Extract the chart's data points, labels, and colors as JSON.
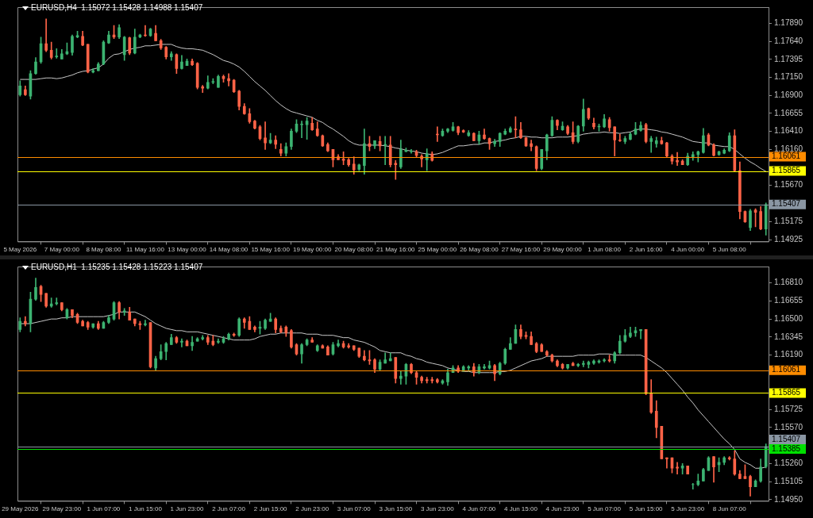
{
  "chart_data": [
    {
      "type": "candlestick",
      "title": "EURUSD,H4  1.15072 1.15428 1.14988 1.15407",
      "legend": false,
      "grid": false,
      "categories": [
        "5 May 2026",
        null,
        null,
        null,
        null,
        null,
        null,
        null,
        "7 May 00:00",
        null,
        null,
        null,
        null,
        null,
        null,
        null,
        "8 May 08:00",
        null,
        null,
        null,
        null,
        null,
        null,
        null,
        "11 May 16:00",
        null,
        null,
        null,
        null,
        null,
        null,
        null,
        "13 May 00:00",
        null,
        null,
        null,
        null,
        null,
        null,
        null,
        "14 May 08:00",
        null,
        null,
        null,
        null,
        null,
        null,
        null,
        "15 May 16:00",
        null,
        null,
        null,
        null,
        null,
        null,
        null,
        "19 May 00:00",
        null,
        null,
        null,
        null,
        null,
        null,
        null,
        "20 May 08:00",
        null,
        null,
        null,
        null,
        null,
        null,
        null,
        "21 May 16:00",
        null,
        null,
        null,
        null,
        null,
        null,
        null,
        "25 May 00:00",
        null,
        null,
        null,
        null,
        null,
        null,
        null,
        "26 May 08:00",
        null,
        null,
        null,
        null,
        null,
        null,
        null,
        "27 May 16:00",
        null,
        null,
        null,
        null,
        null,
        null,
        null,
        "29 May 00:00",
        null,
        null,
        null,
        null,
        null,
        null,
        null,
        "1 Jun 08:00",
        null,
        null,
        null,
        null,
        null,
        null,
        null,
        "2 Jun 16:00",
        null,
        null,
        null,
        null,
        null,
        null,
        null,
        "4 Jun 00:00",
        null,
        null,
        null,
        null,
        null,
        null,
        null,
        "5 Jun 08:00",
        null,
        null,
        null,
        null,
        null,
        null,
        null
      ],
      "ohlc": [
        [
          1.1691,
          1.171,
          1.1689,
          1.1703
        ],
        [
          1.1698,
          1.1703,
          1.169,
          1.1691
        ],
        [
          1.1689,
          1.1724,
          1.1685,
          1.172
        ],
        [
          1.172,
          1.1742,
          1.1719,
          1.1736
        ],
        [
          1.1736,
          1.177,
          1.1734,
          1.1761
        ],
        [
          1.1761,
          1.1795,
          1.175,
          1.1752
        ],
        [
          1.1752,
          1.1763,
          1.174,
          1.1742
        ],
        [
          1.1743,
          1.1754,
          1.1741,
          1.1744
        ],
        [
          1.174,
          1.1753,
          1.174,
          1.1747
        ],
        [
          1.1747,
          1.1762,
          1.1746,
          1.175
        ],
        [
          1.1749,
          1.1773,
          1.1745,
          1.1771
        ],
        [
          1.177,
          1.1778,
          1.1769,
          1.1772
        ],
        [
          1.1771,
          1.1778,
          1.1758,
          1.1759
        ],
        [
          1.176,
          1.176,
          1.1721,
          1.1722
        ],
        [
          1.1722,
          1.1727,
          1.1721,
          1.1724
        ],
        [
          1.1724,
          1.1735,
          1.1724,
          1.1733
        ],
        [
          1.1733,
          1.1765,
          1.1732,
          1.1763
        ],
        [
          1.1762,
          1.1778,
          1.1761,
          1.1773
        ],
        [
          1.1773,
          1.1786,
          1.1768,
          1.177
        ],
        [
          1.177,
          1.1787,
          1.1768,
          1.1783
        ],
        [
          1.1746,
          1.1771,
          1.1738,
          1.177
        ],
        [
          1.1769,
          1.177,
          1.1746,
          1.1748
        ],
        [
          1.1748,
          1.1781,
          1.1747,
          1.177
        ],
        [
          1.177,
          1.1774,
          1.1769,
          1.1773
        ],
        [
          1.1773,
          1.1786,
          1.1771,
          1.1772
        ],
        [
          1.1772,
          1.1782,
          1.1771,
          1.1781
        ],
        [
          1.1775,
          1.1786,
          1.1765,
          1.1765
        ],
        [
          1.1765,
          1.1767,
          1.1753,
          1.1755
        ],
        [
          1.1756,
          1.1757,
          1.174,
          1.1743
        ],
        [
          1.1743,
          1.175,
          1.1738,
          1.1747
        ],
        [
          1.1746,
          1.1747,
          1.172,
          1.1727
        ],
        [
          1.1727,
          1.1745,
          1.1726,
          1.1736
        ],
        [
          1.1731,
          1.174,
          1.1731,
          1.1737
        ],
        [
          1.1737,
          1.174,
          1.1731,
          1.1732
        ],
        [
          1.1734,
          1.1735,
          1.1699,
          1.1701
        ],
        [
          1.1702,
          1.1704,
          1.1694,
          1.17
        ],
        [
          1.17,
          1.1717,
          1.1699,
          1.1708
        ],
        [
          1.1708,
          1.1713,
          1.1706,
          1.1709
        ],
        [
          1.1701,
          1.1718,
          1.1701,
          1.1716
        ],
        [
          1.1716,
          1.1718,
          1.1708,
          1.1713
        ],
        [
          1.1713,
          1.172,
          1.1703,
          1.171
        ],
        [
          1.1711,
          1.1712,
          1.1694,
          1.1695
        ],
        [
          1.1696,
          1.1697,
          1.167,
          1.1675
        ],
        [
          1.1675,
          1.1679,
          1.1664,
          1.1665
        ],
        [
          1.1665,
          1.1672,
          1.1652,
          1.1654
        ],
        [
          1.1655,
          1.1656,
          1.1644,
          1.1645
        ],
        [
          1.1647,
          1.1649,
          1.1629,
          1.1631
        ],
        [
          1.1632,
          1.1654,
          1.1616,
          1.1625
        ],
        [
          1.1625,
          1.1638,
          1.1624,
          1.1629
        ],
        [
          1.1629,
          1.1635,
          1.1617,
          1.1623
        ],
        [
          1.1616,
          1.1624,
          1.1607,
          1.1611
        ],
        [
          1.1611,
          1.1625,
          1.1607,
          1.162
        ],
        [
          1.162,
          1.1644,
          1.1616,
          1.1641
        ],
        [
          1.1641,
          1.1657,
          1.1639,
          1.1651
        ],
        [
          1.165,
          1.1655,
          1.1632,
          1.1651
        ],
        [
          1.165,
          1.166,
          1.163,
          1.1655
        ],
        [
          1.1652,
          1.166,
          1.1642,
          1.1643
        ],
        [
          1.1644,
          1.1654,
          1.1634,
          1.1635
        ],
        [
          1.1635,
          1.1636,
          1.162,
          1.1621
        ],
        [
          1.1623,
          1.1625,
          1.1613,
          1.1614
        ],
        [
          1.1616,
          1.1616,
          1.1592,
          1.1602
        ],
        [
          1.1606,
          1.1609,
          1.1602,
          1.1602
        ],
        [
          1.1603,
          1.1613,
          1.1595,
          1.1601
        ],
        [
          1.1602,
          1.1604,
          1.1593,
          1.1595
        ],
        [
          1.1596,
          1.1606,
          1.1582,
          1.1588
        ],
        [
          1.1589,
          1.1596,
          1.1587,
          1.1595
        ],
        [
          1.1594,
          1.1644,
          1.1582,
          1.1624
        ],
        [
          1.1624,
          1.1634,
          1.1614,
          1.162
        ],
        [
          1.1621,
          1.1628,
          1.1617,
          1.1628
        ],
        [
          1.1627,
          1.1634,
          1.1614,
          1.1621
        ],
        [
          1.1622,
          1.1634,
          1.1595,
          1.1623
        ],
        [
          1.1622,
          1.1634,
          1.1592,
          1.1595
        ],
        [
          1.1597,
          1.1601,
          1.1575,
          1.1595
        ],
        [
          1.1592,
          1.1629,
          1.159,
          1.1616
        ],
        [
          1.1613,
          1.1618,
          1.1613,
          1.1615
        ],
        [
          1.1613,
          1.1616,
          1.1611,
          1.1614
        ],
        [
          1.1613,
          1.1615,
          1.1606,
          1.1608
        ],
        [
          1.1607,
          1.1609,
          1.1592,
          1.1603
        ],
        [
          1.1602,
          1.1617,
          1.1587,
          1.161
        ],
        [
          1.161,
          1.1613,
          1.16,
          1.1601
        ],
        [
          1.1637,
          1.1647,
          1.1627,
          1.1636
        ],
        [
          1.1635,
          1.1644,
          1.1634,
          1.1641
        ],
        [
          1.1641,
          1.1645,
          1.1639,
          1.1644
        ],
        [
          1.1642,
          1.1653,
          1.1641,
          1.1647
        ],
        [
          1.1647,
          1.1648,
          1.1636,
          1.1639
        ],
        [
          1.1642,
          1.1643,
          1.1639,
          1.164
        ],
        [
          1.1635,
          1.1642,
          1.1634,
          1.1639
        ],
        [
          1.1638,
          1.1639,
          1.1628,
          1.1628
        ],
        [
          1.1628,
          1.1641,
          1.1623,
          1.1636
        ],
        [
          1.1636,
          1.1644,
          1.163,
          1.1631
        ],
        [
          1.1631,
          1.1632,
          1.1616,
          1.1624
        ],
        [
          1.1624,
          1.163,
          1.162,
          1.1627
        ],
        [
          1.1627,
          1.1639,
          1.162,
          1.1638
        ],
        [
          1.1637,
          1.1644,
          1.1636,
          1.1641
        ],
        [
          1.164,
          1.1647,
          1.1639,
          1.1645
        ],
        [
          1.1644,
          1.1661,
          1.1632,
          1.1643
        ],
        [
          1.1643,
          1.1653,
          1.1631,
          1.1632
        ],
        [
          1.1632,
          1.1633,
          1.162,
          1.1621
        ],
        [
          1.1624,
          1.1629,
          1.1614,
          1.162
        ],
        [
          1.162,
          1.1621,
          1.1587,
          1.159
        ],
        [
          1.159,
          1.1616,
          1.1588,
          1.1616
        ],
        [
          1.1614,
          1.1637,
          1.1602,
          1.1636
        ],
        [
          1.1635,
          1.1661,
          1.1634,
          1.1656
        ],
        [
          1.1656,
          1.1657,
          1.1643,
          1.1649
        ],
        [
          1.1643,
          1.1654,
          1.1642,
          1.1648
        ],
        [
          1.1647,
          1.1649,
          1.1636,
          1.1638
        ],
        [
          1.1639,
          1.1654,
          1.1624,
          1.1627
        ],
        [
          1.1627,
          1.1649,
          1.1625,
          1.1648
        ],
        [
          1.1648,
          1.1685,
          1.1641,
          1.1671
        ],
        [
          1.1672,
          1.1673,
          1.1657,
          1.1659
        ],
        [
          1.1652,
          1.1659,
          1.1644,
          1.1647
        ],
        [
          1.1647,
          1.1651,
          1.1641,
          1.1648
        ],
        [
          1.1647,
          1.1664,
          1.1646,
          1.1658
        ],
        [
          1.1657,
          1.166,
          1.1641,
          1.1646
        ],
        [
          1.1647,
          1.1647,
          1.1607,
          1.1629
        ],
        [
          1.1629,
          1.1637,
          1.1627,
          1.1628
        ],
        [
          1.1627,
          1.1634,
          1.1624,
          1.1631
        ],
        [
          1.163,
          1.1639,
          1.1629,
          1.1637
        ],
        [
          1.1637,
          1.1653,
          1.1636,
          1.1644
        ],
        [
          1.1642,
          1.1654,
          1.1641,
          1.1649
        ],
        [
          1.165,
          1.1652,
          1.1625,
          1.1627
        ],
        [
          1.1627,
          1.1634,
          1.1612,
          1.1631
        ],
        [
          1.1624,
          1.1633,
          1.1619,
          1.1628
        ],
        [
          1.1628,
          1.1633,
          1.1623,
          1.1624
        ],
        [
          1.1625,
          1.1626,
          1.1606,
          1.1607
        ],
        [
          1.1607,
          1.1609,
          1.1596,
          1.16
        ],
        [
          1.1601,
          1.1612,
          1.1594,
          1.1599
        ],
        [
          1.16,
          1.1602,
          1.1595,
          1.1595
        ],
        [
          1.1595,
          1.1611,
          1.1594,
          1.1607
        ],
        [
          1.1606,
          1.1613,
          1.1601,
          1.1609
        ],
        [
          1.1609,
          1.1614,
          1.1599,
          1.1613
        ],
        [
          1.1612,
          1.1645,
          1.1611,
          1.1635
        ],
        [
          1.1636,
          1.1638,
          1.1621,
          1.1622
        ],
        [
          1.1622,
          1.1624,
          1.1607,
          1.1608
        ],
        [
          1.1609,
          1.1614,
          1.1608,
          1.1613
        ],
        [
          1.1611,
          1.1617,
          1.161,
          1.1615
        ],
        [
          1.1614,
          1.1639,
          1.1613,
          1.1635
        ],
        [
          1.1635,
          1.1643,
          1.1586,
          1.1587
        ],
        [
          1.1587,
          1.1599,
          1.1521,
          1.1531
        ],
        [
          1.1531,
          1.1532,
          1.1516,
          1.1517
        ],
        [
          1.1509,
          1.1534,
          1.1505,
          1.1532
        ],
        [
          1.1533,
          1.1535,
          1.151,
          1.153
        ],
        [
          1.1531,
          1.1538,
          1.1506,
          1.1507
        ],
        [
          1.15072,
          1.15428,
          1.14988,
          1.15407
        ]
      ],
      "series": [
        {
          "type": "line",
          "color": "#c8c8c8",
          "values": [
            1.1712,
            1.1712,
            1.1712,
            1.1712,
            1.1713,
            1.1714,
            1.1714,
            1.1713,
            1.1714,
            1.1716,
            1.1718,
            1.1721,
            1.1723,
            1.1724,
            1.1726,
            1.1728,
            1.1733,
            1.1741,
            1.1746,
            1.1747,
            1.175,
            1.1753,
            1.1755,
            1.1756,
            1.1758,
            1.1758,
            1.1759,
            1.176,
            1.176,
            1.176,
            1.1757,
            1.1755,
            1.1754,
            1.1754,
            1.1753,
            1.1752,
            1.1749,
            1.1746,
            1.1742,
            1.1738,
            1.1736,
            1.1733,
            1.1729,
            1.1723,
            1.1716,
            1.1709,
            1.1703,
            1.1697,
            1.169,
            1.1683,
            1.1677,
            1.1672,
            1.1668,
            1.1666,
            1.1664,
            1.1662,
            1.166,
            1.1656,
            1.1653,
            1.1648,
            1.1644,
            1.1639,
            1.1634,
            1.1628,
            1.1624,
            1.1622,
            1.1622,
            1.1622,
            1.1622,
            1.1622,
            1.1621,
            1.162,
            1.1618,
            1.1617,
            1.1615,
            1.1614,
            1.1613,
            1.1611,
            1.161,
            1.1609,
            1.161,
            1.1612,
            1.1615,
            1.1618,
            1.1621,
            1.1621,
            1.1622,
            1.1623,
            1.1623,
            1.1625,
            1.1625,
            1.1627,
            1.1628,
            1.1629,
            1.1631,
            1.1632,
            1.1634,
            1.1634,
            1.1633,
            1.1633,
            1.1632,
            1.1632,
            1.1632,
            1.1633,
            1.1633,
            1.1633,
            1.1634,
            1.1635,
            1.1637,
            1.1638,
            1.1639,
            1.1639,
            1.164,
            1.1639,
            1.1639,
            1.1638,
            1.1639,
            1.164,
            1.1643,
            1.1644,
            1.1644,
            1.1643,
            1.1642,
            1.164,
            1.1639,
            1.1637,
            1.1635,
            1.1633,
            1.163,
            1.1627,
            1.1626,
            1.1625,
            1.1625,
            1.1622,
            1.1621,
            1.162,
            1.162,
            1.1616,
            1.161,
            1.1604,
            1.1599,
            1.1595,
            1.159,
            1.1586
          ]
        }
      ],
      "ylim": [
        1.149,
        1.1811
      ],
      "yticks": [
        {
          "value": 1.1789,
          "label": "1.17890"
        },
        {
          "value": 1.1764,
          "label": "1.17640"
        },
        {
          "value": 1.17395,
          "label": "1.17395"
        },
        {
          "value": 1.1715,
          "label": "1.17150"
        },
        {
          "value": 1.169,
          "label": "1.16900"
        },
        {
          "value": 1.16655,
          "label": "1.16655"
        },
        {
          "value": 1.1641,
          "label": "1.16410"
        },
        {
          "value": 1.1616,
          "label": "1.16160"
        },
        {
          "value": 1.1567,
          "label": "1.15670"
        },
        {
          "value": 1.15175,
          "label": "1.15175"
        },
        {
          "value": 1.14925,
          "label": "1.14925"
        }
      ],
      "ref_lines": [
        {
          "axis": "y",
          "value": 1.16061,
          "label": "1.16061",
          "color": "#ff8c00"
        },
        {
          "axis": "y",
          "value": 1.15865,
          "label": "1.15865",
          "color": "#ffff00"
        },
        {
          "axis": "y",
          "value": 1.15407,
          "label": "1.15407",
          "color": "#8a96a3"
        }
      ]
    },
    {
      "type": "candlestick",
      "title": "EURUSD,H1  1.15235 1.15428 1.15223 1.15407",
      "legend": false,
      "grid": false,
      "categories": [
        "29 May 2026",
        null,
        null,
        null,
        null,
        null,
        null,
        null,
        "29 May 23:00",
        null,
        null,
        null,
        null,
        null,
        null,
        null,
        "1 Jun 07:00",
        null,
        null,
        null,
        null,
        null,
        null,
        null,
        "1 Jun 15:00",
        null,
        null,
        null,
        null,
        null,
        null,
        null,
        "1 Jun 23:00",
        null,
        null,
        null,
        null,
        null,
        null,
        null,
        "2 Jun 07:00",
        null,
        null,
        null,
        null,
        null,
        null,
        null,
        "2 Jun 15:00",
        null,
        null,
        null,
        null,
        null,
        null,
        null,
        "2 Jun 23:00",
        null,
        null,
        null,
        null,
        null,
        null,
        null,
        "3 Jun 07:00",
        null,
        null,
        null,
        null,
        null,
        null,
        null,
        "3 Jun 15:00",
        null,
        null,
        null,
        null,
        null,
        null,
        null,
        "3 Jun 23:00",
        null,
        null,
        null,
        null,
        null,
        null,
        null,
        "4 Jun 07:00",
        null,
        null,
        null,
        null,
        null,
        null,
        null,
        "4 Jun 15:00",
        null,
        null,
        null,
        null,
        null,
        null,
        null,
        "4 Jun 23:00",
        null,
        null,
        null,
        null,
        null,
        null,
        null,
        "5 Jun 07:00",
        null,
        null,
        null,
        null,
        null,
        null,
        null,
        "5 Jun 15:00",
        null,
        null,
        null,
        null,
        null,
        null,
        null,
        "5 Jun 23:00",
        null,
        null,
        null,
        null,
        null,
        null,
        null,
        "8 Jun 07:00",
        null,
        null,
        null,
        null,
        null,
        null,
        null
      ],
      "ohlc": [
        [
          1.1641,
          1.1651,
          1.1639,
          1.1648
        ],
        [
          1.1648,
          1.1652,
          1.1644,
          1.1646
        ],
        [
          1.1646,
          1.1673,
          1.1639,
          1.1667
        ],
        [
          1.1667,
          1.1685,
          1.1666,
          1.1677
        ],
        [
          1.1678,
          1.1679,
          1.1665,
          1.1671
        ],
        [
          1.1672,
          1.1672,
          1.166,
          1.1661
        ],
        [
          1.1661,
          1.1668,
          1.166,
          1.1663
        ],
        [
          1.1663,
          1.1668,
          1.1662,
          1.1664
        ],
        [
          1.1664,
          1.1664,
          1.1657,
          1.1658
        ],
        [
          1.1651,
          1.1659,
          1.165,
          1.1658
        ],
        [
          1.1658,
          1.1658,
          1.1651,
          1.1653
        ],
        [
          1.1654,
          1.1655,
          1.1646,
          1.1647
        ],
        [
          1.1648,
          1.1649,
          1.1644,
          1.1644
        ],
        [
          1.1647,
          1.1648,
          1.1641,
          1.1643
        ],
        [
          1.1643,
          1.1646,
          1.1642,
          1.1646
        ],
        [
          1.1646,
          1.1648,
          1.1641,
          1.1642
        ],
        [
          1.1642,
          1.1648,
          1.1642,
          1.1647
        ],
        [
          1.1647,
          1.1653,
          1.1646,
          1.1651
        ],
        [
          1.165,
          1.1665,
          1.1649,
          1.1664
        ],
        [
          1.1664,
          1.1665,
          1.165,
          1.1656
        ],
        [
          1.1656,
          1.1659,
          1.1653,
          1.1657
        ],
        [
          1.1656,
          1.166,
          1.1649,
          1.1649
        ],
        [
          1.165,
          1.165,
          1.1644,
          1.1646
        ],
        [
          1.1646,
          1.1648,
          1.1641,
          1.1645
        ],
        [
          1.1645,
          1.1649,
          1.1644,
          1.1646
        ],
        [
          1.1647,
          1.1647,
          1.1608,
          1.1609
        ],
        [
          1.1608,
          1.1618,
          1.1606,
          1.1616
        ],
        [
          1.1616,
          1.1628,
          1.1615,
          1.1622
        ],
        [
          1.1622,
          1.163,
          1.1615,
          1.1629
        ],
        [
          1.1628,
          1.1637,
          1.1628,
          1.1634
        ],
        [
          1.1634,
          1.1635,
          1.1629,
          1.163
        ],
        [
          1.163,
          1.1633,
          1.1626,
          1.1631
        ],
        [
          1.1631,
          1.1632,
          1.1627,
          1.1627
        ],
        [
          1.1627,
          1.1635,
          1.1623,
          1.163
        ],
        [
          1.1631,
          1.1634,
          1.1631,
          1.1633
        ],
        [
          1.1633,
          1.1636,
          1.1632,
          1.1634
        ],
        [
          1.1634,
          1.1636,
          1.1628,
          1.163
        ],
        [
          1.1631,
          1.1636,
          1.1627,
          1.1628
        ],
        [
          1.163,
          1.1633,
          1.1629,
          1.1631
        ],
        [
          1.163,
          1.1635,
          1.1629,
          1.1633
        ],
        [
          1.1633,
          1.1638,
          1.1632,
          1.1637
        ],
        [
          1.1637,
          1.1638,
          1.1635,
          1.1636
        ],
        [
          1.1636,
          1.1651,
          1.1635,
          1.165
        ],
        [
          1.165,
          1.1651,
          1.1642,
          1.1647
        ],
        [
          1.1648,
          1.1652,
          1.1641,
          1.1641
        ],
        [
          1.1643,
          1.1644,
          1.1639,
          1.1641
        ],
        [
          1.1642,
          1.1648,
          1.1637,
          1.1643
        ],
        [
          1.1642,
          1.165,
          1.1641,
          1.1649
        ],
        [
          1.1648,
          1.1655,
          1.1648,
          1.165
        ],
        [
          1.165,
          1.1651,
          1.1638,
          1.1641
        ],
        [
          1.1642,
          1.1644,
          1.1638,
          1.1639
        ],
        [
          1.1643,
          1.1644,
          1.1635,
          1.1638
        ],
        [
          1.164,
          1.1641,
          1.1625,
          1.1626
        ],
        [
          1.1628,
          1.1629,
          1.1619,
          1.162
        ],
        [
          1.162,
          1.1629,
          1.1612,
          1.1628
        ],
        [
          1.1628,
          1.1633,
          1.1627,
          1.1632
        ],
        [
          1.1632,
          1.1634,
          1.163,
          1.163
        ],
        [
          1.1623,
          1.1628,
          1.1622,
          1.1627
        ],
        [
          1.1627,
          1.1628,
          1.1625,
          1.1625
        ],
        [
          1.1626,
          1.1627,
          1.1619,
          1.1619
        ],
        [
          1.162,
          1.163,
          1.1619,
          1.1628
        ],
        [
          1.1627,
          1.1632,
          1.1626,
          1.1629
        ],
        [
          1.1629,
          1.1631,
          1.1625,
          1.1626
        ],
        [
          1.1627,
          1.1629,
          1.1625,
          1.1626
        ],
        [
          1.1627,
          1.1627,
          1.1623,
          1.1624
        ],
        [
          1.1625,
          1.1625,
          1.1617,
          1.1618
        ],
        [
          1.1618,
          1.1623,
          1.1614,
          1.1615
        ],
        [
          1.1615,
          1.1623,
          1.1611,
          1.1614
        ],
        [
          1.1615,
          1.1616,
          1.1604,
          1.1607
        ],
        [
          1.1607,
          1.1615,
          1.1606,
          1.1613
        ],
        [
          1.1612,
          1.1621,
          1.1612,
          1.1615
        ],
        [
          1.1614,
          1.1621,
          1.1614,
          1.1616
        ],
        [
          1.1617,
          1.1617,
          1.1595,
          1.1599
        ],
        [
          1.1599,
          1.1605,
          1.1594,
          1.1601
        ],
        [
          1.1601,
          1.1612,
          1.1594,
          1.1611
        ],
        [
          1.1611,
          1.1612,
          1.1603,
          1.1604
        ],
        [
          1.1604,
          1.1605,
          1.1594,
          1.16
        ],
        [
          1.16,
          1.1601,
          1.1595,
          1.1597
        ],
        [
          1.1598,
          1.16,
          1.1595,
          1.1597
        ],
        [
          1.1598,
          1.16,
          1.1595,
          1.1597
        ],
        [
          1.1598,
          1.1599,
          1.1595,
          1.1596
        ],
        [
          1.1595,
          1.1598,
          1.1594,
          1.1597
        ],
        [
          1.1596,
          1.1607,
          1.1593,
          1.1604
        ],
        [
          1.1604,
          1.161,
          1.1604,
          1.1608
        ],
        [
          1.1608,
          1.161,
          1.1604,
          1.1605
        ],
        [
          1.1605,
          1.161,
          1.1605,
          1.1609
        ],
        [
          1.1608,
          1.161,
          1.1605,
          1.1609
        ],
        [
          1.1609,
          1.1612,
          1.1601,
          1.1604
        ],
        [
          1.1604,
          1.1611,
          1.1603,
          1.1609
        ],
        [
          1.1608,
          1.1611,
          1.1607,
          1.1609
        ],
        [
          1.1608,
          1.1614,
          1.1607,
          1.161
        ],
        [
          1.161,
          1.1611,
          1.1597,
          1.1603
        ],
        [
          1.1603,
          1.1613,
          1.1602,
          1.1612
        ],
        [
          1.1612,
          1.1625,
          1.1611,
          1.1624
        ],
        [
          1.1624,
          1.1634,
          1.1624,
          1.1629
        ],
        [
          1.1629,
          1.1645,
          1.1629,
          1.1641
        ],
        [
          1.1641,
          1.1645,
          1.1633,
          1.1635
        ],
        [
          1.1636,
          1.1639,
          1.1633,
          1.1635
        ],
        [
          1.1635,
          1.1639,
          1.1628,
          1.1628
        ],
        [
          1.1629,
          1.163,
          1.1621,
          1.1622
        ],
        [
          1.1628,
          1.1629,
          1.1622,
          1.1622
        ],
        [
          1.1622,
          1.1623,
          1.1618,
          1.1619
        ],
        [
          1.1619,
          1.162,
          1.1613,
          1.1614
        ],
        [
          1.1614,
          1.1615,
          1.1609,
          1.161
        ],
        [
          1.1611,
          1.1612,
          1.1607,
          1.1608
        ],
        [
          1.1608,
          1.1611,
          1.1607,
          1.1611
        ],
        [
          1.1612,
          1.1613,
          1.161,
          1.161
        ],
        [
          1.161,
          1.1612,
          1.1609,
          1.1611
        ],
        [
          1.1611,
          1.1614,
          1.1609,
          1.1612
        ],
        [
          1.1611,
          1.1614,
          1.1608,
          1.1613
        ],
        [
          1.1612,
          1.1615,
          1.1611,
          1.1614
        ],
        [
          1.1613,
          1.1615,
          1.1612,
          1.1614
        ],
        [
          1.1614,
          1.1616,
          1.1613,
          1.1615
        ],
        [
          1.1615,
          1.1619,
          1.1613,
          1.1614
        ],
        [
          1.1614,
          1.1622,
          1.1612,
          1.1621
        ],
        [
          1.1621,
          1.1636,
          1.162,
          1.1631
        ],
        [
          1.1631,
          1.1641,
          1.163,
          1.1636
        ],
        [
          1.1635,
          1.1643,
          1.1634,
          1.1638
        ],
        [
          1.1638,
          1.1643,
          1.1635,
          1.164
        ],
        [
          1.164,
          1.1641,
          1.1633,
          1.1641
        ],
        [
          1.1641,
          1.1641,
          1.1585,
          1.1586
        ],
        [
          1.1586,
          1.1598,
          1.1569,
          1.157
        ],
        [
          1.1571,
          1.158,
          1.1548,
          1.1557
        ],
        [
          1.1558,
          1.1558,
          1.153,
          1.153
        ],
        [
          1.1531,
          1.1531,
          1.1522,
          1.153
        ],
        [
          1.1531,
          1.1531,
          1.1518,
          1.1522
        ],
        [
          1.1523,
          1.1527,
          1.1517,
          1.1522
        ],
        [
          1.1522,
          1.1526,
          1.1517,
          1.1524
        ],
        [
          1.1524,
          1.1524,
          1.1517,
          1.1517
        ],
        [
          1.1508,
          1.1509,
          1.1504,
          1.1508
        ],
        [
          1.1508,
          1.1517,
          1.1507,
          1.1511
        ],
        [
          1.1511,
          1.1522,
          1.1511,
          1.1521
        ],
        [
          1.152,
          1.1532,
          1.152,
          1.1531
        ],
        [
          1.1532,
          1.1532,
          1.151,
          1.1523
        ],
        [
          1.1525,
          1.1531,
          1.1519,
          1.1527
        ],
        [
          1.1527,
          1.1532,
          1.1525,
          1.1531
        ],
        [
          1.1531,
          1.1532,
          1.1529,
          1.153
        ],
        [
          1.153,
          1.1537,
          1.1516,
          1.1517
        ],
        [
          1.1517,
          1.152,
          1.1513,
          1.1513
        ],
        [
          1.1515,
          1.1525,
          1.1513,
          1.1513
        ],
        [
          1.1515,
          1.1516,
          1.1498,
          1.1506
        ],
        [
          1.1506,
          1.1512,
          1.1506,
          1.1511
        ],
        [
          1.1511,
          1.153,
          1.151,
          1.1523
        ],
        [
          1.15235,
          1.15428,
          1.15223,
          1.15407
        ]
      ],
      "series": [
        {
          "type": "line",
          "color": "#c8c8c8",
          "values": [
            1.1646,
            1.1646,
            1.1646,
            1.1647,
            1.1648,
            1.1649,
            1.165,
            1.165,
            1.1651,
            1.1651,
            1.1652,
            1.1652,
            1.1652,
            1.1652,
            1.1652,
            1.1652,
            1.1652,
            1.1653,
            1.1654,
            1.1656,
            1.1656,
            1.1656,
            1.1656,
            1.1654,
            1.1652,
            1.1649,
            1.1646,
            1.1644,
            1.1642,
            1.1641,
            1.164,
            1.164,
            1.1639,
            1.1639,
            1.1639,
            1.1638,
            1.1637,
            1.1636,
            1.1635,
            1.1634,
            1.1633,
            1.1632,
            1.1632,
            1.1632,
            1.1632,
            1.1633,
            1.1635,
            1.1636,
            1.1637,
            1.1637,
            1.1638,
            1.1638,
            1.1638,
            1.1638,
            1.1638,
            1.1637,
            1.1637,
            1.1637,
            1.1636,
            1.1636,
            1.1636,
            1.1635,
            1.1634,
            1.1634,
            1.1632,
            1.1631,
            1.163,
            1.1628,
            1.1626,
            1.1623,
            1.1622,
            1.1621,
            1.1621,
            1.1621,
            1.1619,
            1.1618,
            1.1616,
            1.1615,
            1.1613,
            1.1612,
            1.1611,
            1.161,
            1.1608,
            1.1607,
            1.1606,
            1.1605,
            1.1605,
            1.1604,
            1.1604,
            1.1604,
            1.1604,
            1.1604,
            1.1605,
            1.1605,
            1.1606,
            1.1608,
            1.161,
            1.1612,
            1.1614,
            1.1615,
            1.1616,
            1.1618,
            1.1618,
            1.1618,
            1.1618,
            1.1618,
            1.1618,
            1.1619,
            1.1619,
            1.1619,
            1.1619,
            1.162,
            1.162,
            1.162,
            1.1619,
            1.1619,
            1.1619,
            1.1619,
            1.1619,
            1.1619,
            1.1617,
            1.1614,
            1.1611,
            1.1608,
            1.1604,
            1.1599,
            1.1594,
            1.1589,
            1.1583,
            1.1578,
            1.1572,
            1.1567,
            1.1562,
            1.1557,
            1.1552,
            1.1547,
            1.1543,
            1.1538,
            1.153,
            1.1527,
            1.1525,
            1.1522,
            1.1522,
            1.1523
          ]
        }
      ],
      "ylim": [
        1.1494,
        1.1695
      ],
      "yticks": [
        {
          "value": 1.1681,
          "label": "1.16810"
        },
        {
          "value": 1.16655,
          "label": "1.16655"
        },
        {
          "value": 1.165,
          "label": "1.16500"
        },
        {
          "value": 1.16345,
          "label": "1.16345"
        },
        {
          "value": 1.1619,
          "label": "1.16190"
        },
        {
          "value": 1.15725,
          "label": "1.15725"
        },
        {
          "value": 1.1557,
          "label": "1.15570"
        },
        {
          "value": 1.1526,
          "label": "1.15260"
        },
        {
          "value": 1.15105,
          "label": "1.15105"
        },
        {
          "value": 1.1495,
          "label": "1.14950"
        }
      ],
      "ref_lines": [
        {
          "axis": "y",
          "value": 1.16061,
          "label": "1.16061",
          "color": "#ff8c00"
        },
        {
          "axis": "y",
          "value": 1.15865,
          "label": "1.15865",
          "color": "#ffff00"
        },
        {
          "axis": "y",
          "value": 1.15407,
          "label": "1.15407",
          "color": "#8a96a3"
        },
        {
          "axis": "y",
          "value": 1.15385,
          "label": "1.15385",
          "color": "#00e000"
        }
      ]
    }
  ]
}
